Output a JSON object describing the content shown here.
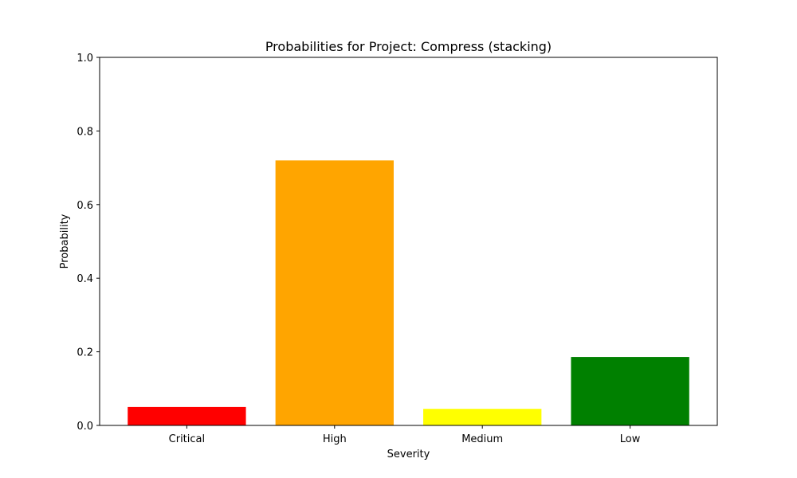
{
  "chart_data": {
    "type": "bar",
    "title": "Probabilities for Project: Compress (stacking)",
    "xlabel": "Severity",
    "ylabel": "Probability",
    "categories": [
      "Critical",
      "High",
      "Medium",
      "Low"
    ],
    "values": [
      0.05,
      0.72,
      0.045,
      0.186
    ],
    "colors": [
      "#ff0000",
      "#ffa500",
      "#ffff00",
      "#008000"
    ],
    "ylim": [
      0,
      1.0
    ],
    "yticks": [
      "0.0",
      "0.2",
      "0.4",
      "0.6",
      "0.8",
      "1.0"
    ],
    "grid": false,
    "legend": "none"
  }
}
